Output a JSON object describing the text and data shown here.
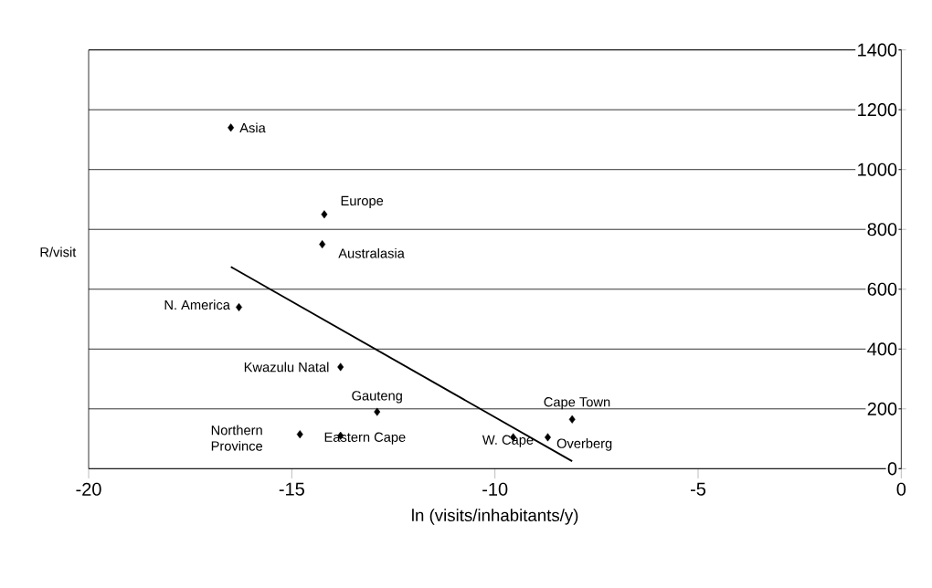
{
  "chart_data": {
    "type": "scatter",
    "xlabel": "ln (visits/inhabitants/y)",
    "ylabel": "R/visit",
    "xlim": [
      -20,
      0
    ],
    "xticks": [
      -20,
      -15,
      -10,
      -5,
      0
    ],
    "ylim": [
      0,
      1400
    ],
    "yticks": [
      0,
      200,
      400,
      600,
      800,
      1000,
      1200,
      1400
    ],
    "grid": "y",
    "series": [
      {
        "color": "#000000",
        "marker": "diamond",
        "x": [
          -16.5,
          -14.2,
          -14.25,
          -16.3,
          -13.8,
          -12.9,
          -14.8,
          -13.8,
          -9.55,
          -8.7,
          -8.1
        ],
        "values": [
          1140,
          850,
          750,
          540,
          340,
          190,
          115,
          110,
          105,
          105,
          165
        ]
      },
      {
        "type": "line",
        "color": "#000000",
        "marker": "none",
        "x": [
          -16.5,
          -8.1
        ],
        "values": [
          675,
          25
        ]
      }
    ],
    "annotations": [
      {
        "text": "Asia",
        "x": -16.5,
        "y": 1140
      },
      {
        "text": "Europe",
        "x": -14.2,
        "y": 850
      },
      {
        "text": "Australasia",
        "x": -14.25,
        "y": 750
      },
      {
        "text": "N. America",
        "x": -16.3,
        "y": 540
      },
      {
        "text": "Kwazulu Natal",
        "x": -13.8,
        "y": 340
      },
      {
        "text": "Gauteng",
        "x": -12.9,
        "y": 190
      },
      {
        "text": "Northern Province",
        "x": -14.8,
        "y": 115
      },
      {
        "text": "Eastern Cape",
        "x": -13.8,
        "y": 110
      },
      {
        "text": "W. Cape",
        "x": -9.55,
        "y": 105
      },
      {
        "text": "Overberg",
        "x": -8.7,
        "y": 105
      },
      {
        "text": "Cape Town",
        "x": -8.1,
        "y": 165
      }
    ]
  }
}
